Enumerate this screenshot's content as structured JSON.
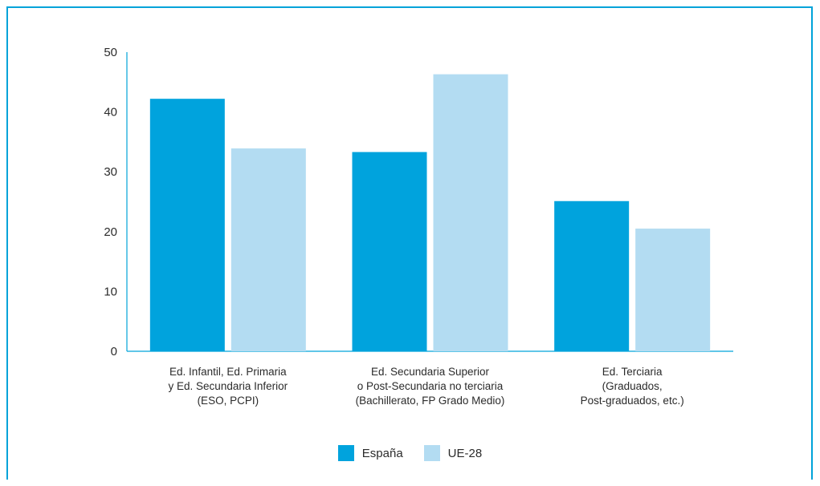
{
  "chart_data": {
    "type": "bar",
    "categories": [
      [
        "Ed. Infantil, Ed. Primaria",
        "y Ed. Secundaria Inferior",
        "(ESO, PCPI)"
      ],
      [
        "Ed. Secundaria Superior",
        "o Post-Secundaria no terciaria",
        "(Bachillerato, FP Grado Medio)"
      ],
      [
        "Ed. Terciaria",
        "(Graduados,",
        "Post-graduados, etc.)"
      ]
    ],
    "series": [
      {
        "name": "España",
        "values": [
          42.2,
          33.3,
          25.1
        ],
        "color": "#00a3dd"
      },
      {
        "name": "UE-28",
        "values": [
          33.9,
          46.3,
          20.5
        ],
        "color": "#b3dcf2"
      }
    ],
    "ylim": [
      0,
      50
    ],
    "yticks": [
      "0",
      "10",
      "20",
      "30",
      "40",
      "50"
    ],
    "title": "",
    "xlabel": "",
    "ylabel": "",
    "grid": false,
    "legend_position": "bottom-center"
  },
  "colors": {
    "frame": "#00a3d9",
    "axis": "#00a3d9"
  }
}
